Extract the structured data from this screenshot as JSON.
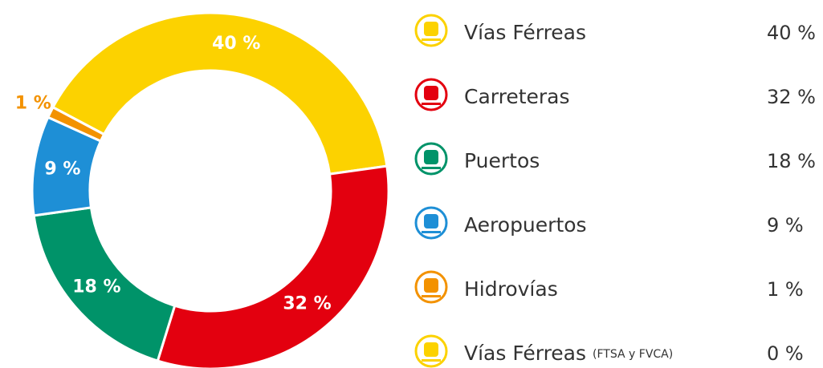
{
  "chart_data": {
    "type": "pie",
    "categories": [
      "Vías Férreas",
      "Carreteras",
      "Puertos",
      "Aeropuertos",
      "Hidrovías",
      "Vías Férreas"
    ],
    "legend_notes": [
      null,
      null,
      null,
      null,
      null,
      "(FTSA y FVCA)"
    ],
    "values": [
      40,
      32,
      18,
      9,
      1,
      0
    ],
    "value_labels": [
      "40 %",
      "32 %",
      "18 %",
      "9 %",
      "1 %",
      "0 %"
    ],
    "colors": [
      "#fcd200",
      "#e3000f",
      "#009369",
      "#1e8fd6",
      "#f39200",
      "#fcd200"
    ]
  }
}
